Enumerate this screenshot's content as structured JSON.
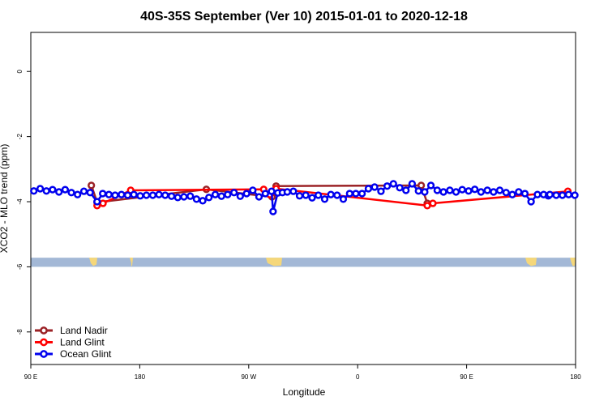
{
  "chart_data": {
    "type": "line",
    "title": "40S-35S September (Ver 10)   2015-01-01 to 2020-12-18",
    "xlabel": "Longitude",
    "ylabel": "XCO2 - MLO trend (ppm)",
    "xlim": [
      90,
      450
    ],
    "ylim": [
      -9,
      1.2
    ],
    "x_tick_values": [
      90,
      162,
      234,
      306,
      378,
      450
    ],
    "x_tick_labels": [
      "90 E",
      "180",
      "90 W",
      "0",
      "90 E",
      "180"
    ],
    "y_tick_values": [
      0,
      -2,
      -4,
      -6,
      -8
    ],
    "y_tick_labels": [
      "0",
      "-2",
      "-4",
      "-6",
      "-8"
    ],
    "legend_position": "bottom-left",
    "map_strip": {
      "y_range": [
        -5.72,
        -6.0
      ],
      "ocean_color": "#a3b8d6",
      "land_color": "#f5d77a"
    },
    "series": [
      {
        "name": "Land Nadir",
        "color": "#9b2226",
        "points": [
          [
            130.0,
            -3.5
          ],
          [
            133.8,
            -4.02
          ],
          [
            206.0,
            -3.62
          ],
          [
            249.4,
            -3.85
          ],
          [
            252.1,
            -3.52
          ],
          [
            348.0,
            -3.5
          ],
          [
            352.0,
            -4.05
          ]
        ]
      },
      {
        "name": "Land Glint",
        "color": "#ff0000",
        "points": [
          [
            133.8,
            -4.12
          ],
          [
            137.7,
            -4.05
          ],
          [
            156.0,
            -3.65
          ],
          [
            243.9,
            -3.62
          ],
          [
            248.0,
            -3.78
          ],
          [
            252.1,
            -3.6
          ],
          [
            352.0,
            -4.12
          ],
          [
            355.7,
            -4.05
          ],
          [
            444.9,
            -3.68
          ]
        ]
      },
      {
        "name": "Ocean Glint",
        "color": "#0000ee",
        "points": [
          [
            92.0,
            -3.67
          ],
          [
            96.2,
            -3.6
          ],
          [
            100.3,
            -3.67
          ],
          [
            104.4,
            -3.63
          ],
          [
            108.6,
            -3.7
          ],
          [
            112.7,
            -3.63
          ],
          [
            116.8,
            -3.72
          ],
          [
            120.9,
            -3.78
          ],
          [
            125.1,
            -3.68
          ],
          [
            129.2,
            -3.72
          ],
          [
            133.8,
            -4.0
          ],
          [
            137.5,
            -3.75
          ],
          [
            141.6,
            -3.78
          ],
          [
            145.7,
            -3.8
          ],
          [
            149.9,
            -3.78
          ],
          [
            154.0,
            -3.8
          ],
          [
            158.1,
            -3.78
          ],
          [
            162.3,
            -3.82
          ],
          [
            166.4,
            -3.8
          ],
          [
            170.6,
            -3.8
          ],
          [
            174.7,
            -3.78
          ],
          [
            178.8,
            -3.8
          ],
          [
            183.0,
            -3.83
          ],
          [
            187.1,
            -3.87
          ],
          [
            191.2,
            -3.85
          ],
          [
            195.4,
            -3.83
          ],
          [
            199.5,
            -3.92
          ],
          [
            203.6,
            -3.97
          ],
          [
            207.7,
            -3.87
          ],
          [
            211.9,
            -3.78
          ],
          [
            216.0,
            -3.83
          ],
          [
            220.1,
            -3.78
          ],
          [
            224.3,
            -3.72
          ],
          [
            228.4,
            -3.83
          ],
          [
            232.6,
            -3.75
          ],
          [
            236.7,
            -3.65
          ],
          [
            240.8,
            -3.85
          ],
          [
            245.0,
            -3.75
          ],
          [
            249.1,
            -3.68
          ],
          [
            253.2,
            -3.73
          ],
          [
            256.3,
            -3.72
          ],
          [
            250.1,
            -4.3
          ],
          [
            259.5,
            -3.7
          ],
          [
            263.5,
            -3.68
          ],
          [
            267.6,
            -3.82
          ],
          [
            271.7,
            -3.8
          ],
          [
            275.9,
            -3.88
          ],
          [
            280.0,
            -3.8
          ],
          [
            284.2,
            -3.92
          ],
          [
            288.3,
            -3.78
          ],
          [
            292.4,
            -3.8
          ],
          [
            296.5,
            -3.92
          ],
          [
            300.7,
            -3.75
          ],
          [
            304.8,
            -3.75
          ],
          [
            308.9,
            -3.75
          ],
          [
            313.1,
            -3.6
          ],
          [
            317.2,
            -3.55
          ],
          [
            321.4,
            -3.68
          ],
          [
            325.5,
            -3.52
          ],
          [
            329.6,
            -3.45
          ],
          [
            333.8,
            -3.57
          ],
          [
            337.9,
            -3.65
          ],
          [
            342.0,
            -3.45
          ],
          [
            346.2,
            -3.67
          ],
          [
            350.3,
            -3.7
          ],
          [
            354.4,
            -3.5
          ],
          [
            358.6,
            -3.65
          ],
          [
            362.7,
            -3.7
          ],
          [
            366.9,
            -3.65
          ],
          [
            371.0,
            -3.7
          ],
          [
            375.1,
            -3.63
          ],
          [
            379.3,
            -3.67
          ],
          [
            383.4,
            -3.62
          ],
          [
            387.5,
            -3.7
          ],
          [
            391.7,
            -3.65
          ],
          [
            395.8,
            -3.7
          ],
          [
            399.9,
            -3.65
          ],
          [
            404.1,
            -3.72
          ],
          [
            408.2,
            -3.78
          ],
          [
            412.4,
            -3.7
          ],
          [
            416.5,
            -3.75
          ],
          [
            420.6,
            -4.0
          ],
          [
            424.8,
            -3.78
          ],
          [
            428.9,
            -3.78
          ],
          [
            433.0,
            -3.78
          ],
          [
            437.2,
            -3.8
          ],
          [
            441.3,
            -3.8
          ],
          [
            445.4,
            -3.78
          ],
          [
            449.5,
            -3.8
          ],
          [
            432.0,
            -3.82
          ]
        ]
      }
    ]
  }
}
